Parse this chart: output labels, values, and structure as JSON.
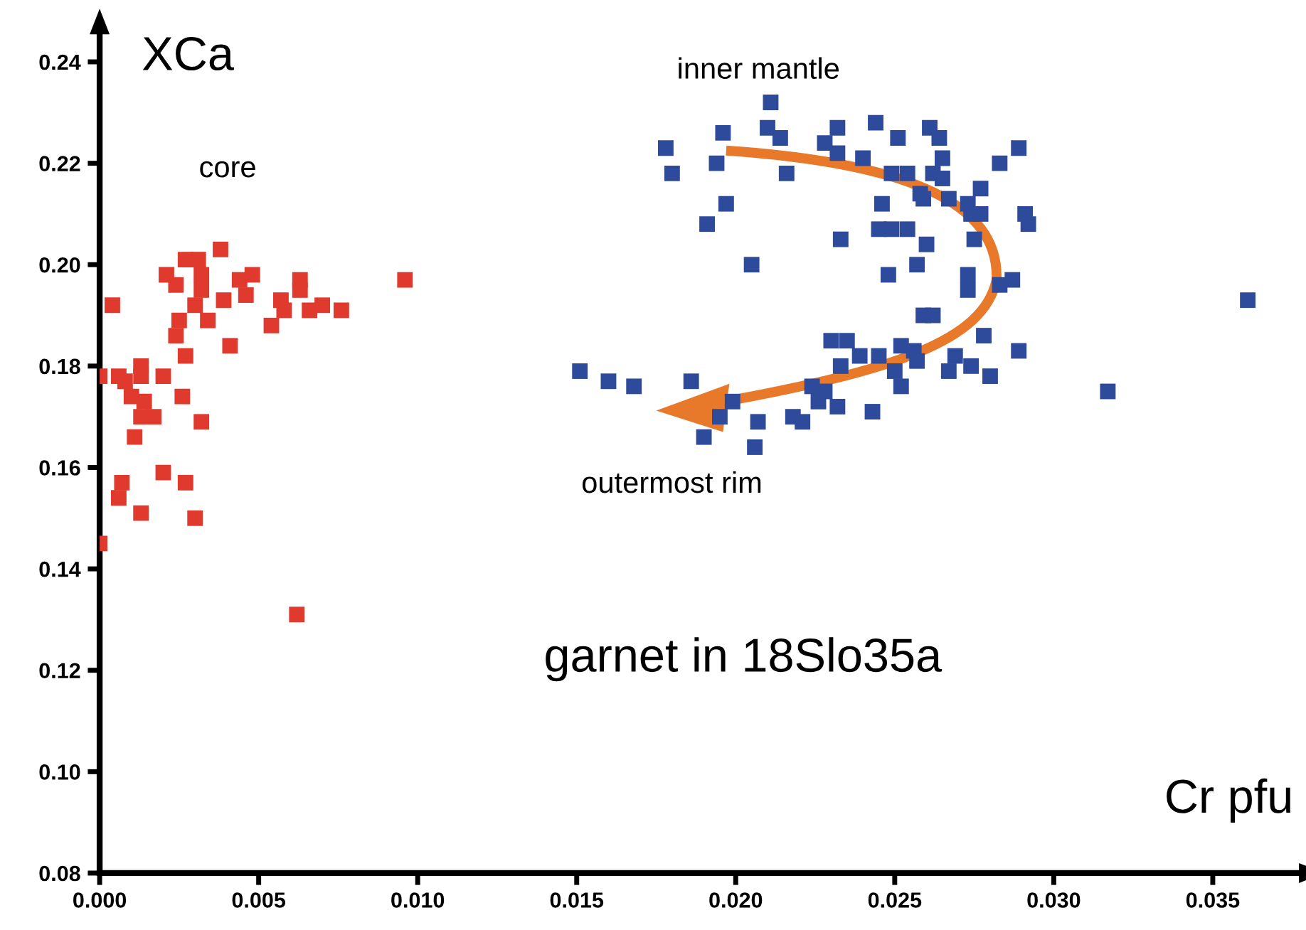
{
  "chart_data": {
    "type": "scatter",
    "xlabel": "Cr pfu",
    "ylabel": "XCa",
    "marker": "square",
    "grid": false,
    "xlim": [
      0,
      0.0378
    ],
    "ylim": [
      0.08,
      0.246
    ],
    "xticks": [
      {
        "value": 0,
        "label": "0.000"
      },
      {
        "value": 0.005,
        "label": "0.005"
      },
      {
        "value": 0.01,
        "label": "0.010"
      },
      {
        "value": 0.015,
        "label": "0.015"
      },
      {
        "value": 0.02,
        "label": "0.020"
      },
      {
        "value": 0.025,
        "label": "0.025"
      },
      {
        "value": 0.03,
        "label": "0.030"
      },
      {
        "value": 0.035,
        "label": "0.035"
      }
    ],
    "yticks": [
      {
        "value": 0.08,
        "label": "0.08"
      },
      {
        "value": 0.1,
        "label": "0.10"
      },
      {
        "value": 0.12,
        "label": "0.12"
      },
      {
        "value": 0.14,
        "label": "0.14"
      },
      {
        "value": 0.16,
        "label": "0.16"
      },
      {
        "value": 0.18,
        "label": "0.18"
      },
      {
        "value": 0.2,
        "label": "0.20"
      },
      {
        "value": 0.22,
        "label": "0.22"
      },
      {
        "value": 0.24,
        "label": "0.24"
      }
    ],
    "annotations": [
      "core",
      "inner mantle",
      "outermost rim",
      "garnet in 18Slo35a"
    ],
    "series": [
      {
        "color": "#e03a2f",
        "x": [
          0.0038,
          0.0027,
          0.0031,
          0.0021,
          0.0024,
          0.0032,
          0.0032,
          0.0044,
          0.0048,
          0.0046,
          0.0039,
          0.0063,
          0.0063,
          0.0057,
          0.0058,
          0.0066,
          0.007,
          0.0076,
          0.0096,
          0.0004,
          0.003,
          0.0025,
          0.0034,
          0.0054,
          0.0024,
          0.0041,
          0.0027,
          0.0,
          0.0006,
          0.0008,
          0.0013,
          0.0013,
          0.002,
          0.001,
          0.0026,
          0.0014,
          0.0013,
          0.0017,
          0.0032,
          0.0011,
          0.002,
          0.0027,
          0.0007,
          0.0006,
          0.0013,
          0.003,
          0.0,
          0.0062
        ],
        "values": [
          0.203,
          0.201,
          0.201,
          0.198,
          0.196,
          0.198,
          0.195,
          0.197,
          0.198,
          0.194,
          0.193,
          0.197,
          0.195,
          0.193,
          0.191,
          0.191,
          0.192,
          0.191,
          0.197,
          0.192,
          0.192,
          0.189,
          0.189,
          0.188,
          0.186,
          0.184,
          0.182,
          0.178,
          0.178,
          0.177,
          0.18,
          0.178,
          0.178,
          0.174,
          0.174,
          0.173,
          0.17,
          0.17,
          0.169,
          0.166,
          0.159,
          0.157,
          0.157,
          0.154,
          0.151,
          0.15,
          0.145,
          0.131
        ]
      },
      {
        "color": "#2e4a9a",
        "x": [
          0.0211,
          0.0196,
          0.0178,
          0.018,
          0.0194,
          0.021,
          0.0214,
          0.0216,
          0.0232,
          0.0228,
          0.0232,
          0.0244,
          0.0251,
          0.024,
          0.0261,
          0.0264,
          0.0265,
          0.0249,
          0.0254,
          0.0262,
          0.0265,
          0.0283,
          0.0289,
          0.0277,
          0.0258,
          0.0259,
          0.0246,
          0.0267,
          0.0273,
          0.0274,
          0.0277,
          0.0197,
          0.0191,
          0.0245,
          0.0249,
          0.0254,
          0.0233,
          0.026,
          0.0275,
          0.0205,
          0.0257,
          0.0248,
          0.0273,
          0.0273,
          0.0283,
          0.0287,
          0.0259,
          0.0262,
          0.0278,
          0.023,
          0.0235,
          0.0239,
          0.0245,
          0.0252,
          0.0256,
          0.0257,
          0.0233,
          0.0269,
          0.0289,
          0.025,
          0.0252,
          0.0267,
          0.0274,
          0.028,
          0.0151,
          0.016,
          0.0168,
          0.0186,
          0.0224,
          0.0228,
          0.0226,
          0.0232,
          0.0243,
          0.0199,
          0.0195,
          0.0207,
          0.0218,
          0.0221,
          0.019,
          0.0206,
          0.0292,
          0.0291,
          0.0361,
          0.0317
        ],
        "values": [
          0.232,
          0.226,
          0.223,
          0.218,
          0.22,
          0.227,
          0.225,
          0.218,
          0.227,
          0.224,
          0.222,
          0.228,
          0.225,
          0.221,
          0.227,
          0.225,
          0.221,
          0.218,
          0.218,
          0.218,
          0.217,
          0.22,
          0.223,
          0.215,
          0.214,
          0.213,
          0.212,
          0.213,
          0.212,
          0.21,
          0.21,
          0.212,
          0.208,
          0.207,
          0.207,
          0.207,
          0.205,
          0.204,
          0.205,
          0.2,
          0.2,
          0.198,
          0.198,
          0.195,
          0.196,
          0.197,
          0.19,
          0.19,
          0.186,
          0.185,
          0.185,
          0.182,
          0.182,
          0.184,
          0.183,
          0.181,
          0.18,
          0.182,
          0.183,
          0.179,
          0.176,
          0.179,
          0.18,
          0.178,
          0.179,
          0.177,
          0.176,
          0.177,
          0.176,
          0.175,
          0.173,
          0.172,
          0.171,
          0.173,
          0.17,
          0.169,
          0.17,
          0.169,
          0.166,
          0.164,
          0.208,
          0.21,
          0.193,
          0.175
        ]
      }
    ]
  }
}
